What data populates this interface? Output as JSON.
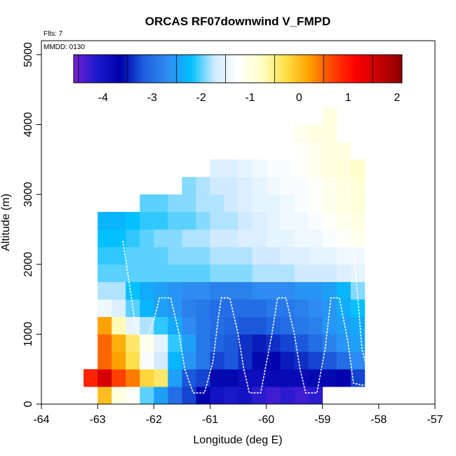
{
  "chart_data": {
    "type": "heatmap",
    "title": "ORCAS RF07downwind V_FMPD",
    "annotations": [
      "Flts: 7",
      "MMDD: 0130"
    ],
    "xlabel": "Longitude (deg E)",
    "ylabel": "Altitude (m)",
    "xlim": [
      -64,
      -57
    ],
    "ylim": [
      0,
      5200
    ],
    "x_ticks": [
      "-64",
      "-63",
      "-62",
      "-61",
      "-60",
      "-59",
      "-58",
      "-57"
    ],
    "y_ticks": [
      "0",
      "1000",
      "2000",
      "3000",
      "4000",
      "5000"
    ],
    "colorbar": {
      "range": [
        -4.6,
        2.1
      ],
      "ticks": [
        "-4",
        "-3",
        "-2",
        "-1",
        "0",
        "1",
        "2"
      ],
      "colors": [
        "#7a1fd6",
        "#1a1acc",
        "#0000aa",
        "#1e5fe0",
        "#2f8cf0",
        "#00bfff",
        "#cfe9ff",
        "#ffffff",
        "#ffffc8",
        "#ffe14d",
        "#ffa500",
        "#ff4500",
        "#ff0000",
        "#c80000",
        "#8b0000"
      ]
    },
    "grid": {
      "lon_start": -63.0,
      "lon_step": 0.25,
      "alt_step": 250,
      "rows": [
        {
          "alt": 0,
          "start_col": 0,
          "values": [
            0.0,
            -1.0,
            -1.2,
            -2.0,
            -2.5,
            -3.0,
            -3.3,
            -3.7,
            -4.0,
            -4.1,
            -4.0,
            -4.2,
            -4.3,
            -4.2,
            -4.3,
            -4.2
          ]
        },
        {
          "alt": 250,
          "start_col": -1,
          "values": [
            0.9,
            1.5,
            0.7,
            0.4,
            -0.2,
            -0.4,
            -2.5,
            -3.2,
            -3.3,
            -3.6,
            -3.6,
            -3.9,
            -3.9,
            -3.8,
            -3.8,
            -3.8,
            -3.6,
            -3.6,
            -3.7,
            -3.3
          ]
        },
        {
          "alt": 500,
          "start_col": 0,
          "values": [
            0.5,
            0.2,
            -0.3,
            -1.3,
            -1.7,
            -2.3,
            -2.6,
            -2.9,
            -3.3,
            -3.2,
            -3.4,
            -3.6,
            -3.7,
            -3.5,
            -3.4,
            -3.3,
            -3.2,
            -3.0,
            -2.7
          ]
        },
        {
          "alt": 750,
          "start_col": 0,
          "values": [
            0.5,
            0.1,
            -0.4,
            -1.1,
            -1.5,
            -2.1,
            -2.5,
            -2.9,
            -3.1,
            -3.2,
            -3.4,
            -3.5,
            -3.4,
            -3.3,
            -3.2,
            -3.0,
            -2.8,
            -2.6,
            -2.5
          ]
        },
        {
          "alt": 1000,
          "start_col": 0,
          "values": [
            0.2,
            -0.7,
            -1.5,
            -1.8,
            -2.1,
            -2.4,
            -2.7,
            -2.9,
            -3.0,
            -3.1,
            -3.2,
            -3.2,
            -3.1,
            -3.0,
            -2.9,
            -2.8,
            -2.6,
            -2.5,
            -2.4
          ]
        },
        {
          "alt": 1250,
          "start_col": 0,
          "values": [
            -1.4,
            -1.6,
            -2.0,
            -2.3,
            -2.5,
            -2.6,
            -2.8,
            -2.9,
            -3.0,
            -3.0,
            -3.0,
            -3.0,
            -2.9,
            -2.9,
            -2.8,
            -2.7,
            -2.6,
            -2.4,
            -2.2
          ]
        },
        {
          "alt": 1500,
          "start_col": 0,
          "values": [
            -1.8,
            -1.8,
            -2.2,
            -2.4,
            -2.5,
            -2.6,
            -2.7,
            -2.7,
            -2.8,
            -2.8,
            -2.8,
            -2.7,
            -2.7,
            -2.7,
            -2.6,
            -2.6,
            -2.5,
            -2.3,
            -1.9
          ]
        },
        {
          "alt": 1750,
          "start_col": 0,
          "values": [
            -2.0,
            -2.0,
            -2.0,
            -2.0,
            -2.0,
            -2.0,
            -2.0,
            -2.0,
            -1.9,
            -1.9,
            -1.9,
            -1.8,
            -1.8,
            -1.8,
            -1.7,
            -1.7,
            -1.7,
            -1.6,
            -1.5
          ]
        },
        {
          "alt": 2000,
          "start_col": 0,
          "values": [
            -2.1,
            -2.1,
            -2.0,
            -2.0,
            -2.0,
            -1.9,
            -1.9,
            -1.9,
            -1.8,
            -1.8,
            -1.8,
            -1.7,
            -1.7,
            -1.6,
            -1.6,
            -1.5,
            -1.5,
            -1.4,
            -1.4
          ]
        },
        {
          "alt": 2250,
          "start_col": 0,
          "values": [
            -2.2,
            -2.2,
            -2.1,
            -2.0,
            -1.9,
            -1.9,
            -1.8,
            -1.8,
            -1.7,
            -1.7,
            -1.6,
            -1.6,
            -1.5,
            -1.5,
            -1.4,
            -1.4,
            -1.3,
            -1.2,
            -1.1
          ]
        },
        {
          "alt": 2500,
          "start_col": 0,
          "values": [
            -2.3,
            -2.3,
            -2.2,
            -2.1,
            -2.1,
            -2.0,
            -2.0,
            -1.9,
            -1.8,
            -1.8,
            -1.7,
            -1.6,
            -1.5,
            -1.4,
            -1.4,
            -1.3,
            -1.2,
            -1.1,
            -1.0
          ]
        },
        {
          "alt": 2750,
          "start_col": 3,
          "values": [
            -2.0,
            -2.0,
            -1.9,
            -1.9,
            -1.8,
            -1.8,
            -1.7,
            -1.6,
            -1.5,
            -1.5,
            -1.4,
            -1.3,
            -1.2,
            -1.1,
            -1.0,
            -0.9
          ]
        },
        {
          "alt": 3000,
          "start_col": 6,
          "values": [
            -1.9,
            -1.8,
            -1.7,
            -1.7,
            -1.6,
            -1.5,
            -1.4,
            -1.3,
            -1.3,
            -1.2,
            -1.1,
            -1.0,
            -0.9
          ]
        },
        {
          "alt": 3250,
          "start_col": 8,
          "values": [
            -1.6,
            -1.6,
            -1.5,
            -1.4,
            -1.3,
            -1.3,
            -1.2,
            -1.1,
            -1.0,
            -0.9,
            -0.8
          ]
        },
        {
          "alt": 3500,
          "start_col": 14,
          "values": [
            -1.2,
            -1.1,
            -1.0,
            -1.0
          ]
        },
        {
          "alt": 3750,
          "start_col": 14,
          "values": [
            -1.1,
            -1.0,
            -1.0
          ]
        },
        {
          "alt": 4000,
          "start_col": 16,
          "values": [
            -1.0
          ]
        }
      ]
    },
    "flight_track": [
      [
        -62.55,
        2330
      ],
      [
        -62.45,
        1800
      ],
      [
        -62.35,
        1250
      ],
      [
        -62.2,
        800
      ],
      [
        -62.0,
        1200
      ],
      [
        -61.9,
        1520
      ],
      [
        -61.7,
        1520
      ],
      [
        -61.55,
        1000
      ],
      [
        -61.45,
        500
      ],
      [
        -61.3,
        160
      ],
      [
        -61.1,
        160
      ],
      [
        -60.95,
        600
      ],
      [
        -60.85,
        1250
      ],
      [
        -60.8,
        1520
      ],
      [
        -60.65,
        1520
      ],
      [
        -60.5,
        1000
      ],
      [
        -60.4,
        500
      ],
      [
        -60.3,
        160
      ],
      [
        -60.1,
        160
      ],
      [
        -59.9,
        1000
      ],
      [
        -59.8,
        1520
      ],
      [
        -59.65,
        1520
      ],
      [
        -59.5,
        1000
      ],
      [
        -59.4,
        500
      ],
      [
        -59.3,
        160
      ],
      [
        -59.1,
        160
      ],
      [
        -58.95,
        800
      ],
      [
        -58.85,
        1520
      ],
      [
        -58.7,
        1520
      ],
      [
        -58.55,
        900
      ],
      [
        -58.45,
        300
      ],
      [
        -58.3,
        270
      ],
      [
        -58.15,
        300
      ],
      [
        -58.3,
        800
      ],
      [
        -58.4,
        1800
      ],
      [
        -58.5,
        2700
      ],
      [
        -58.55,
        3500
      ]
    ]
  }
}
